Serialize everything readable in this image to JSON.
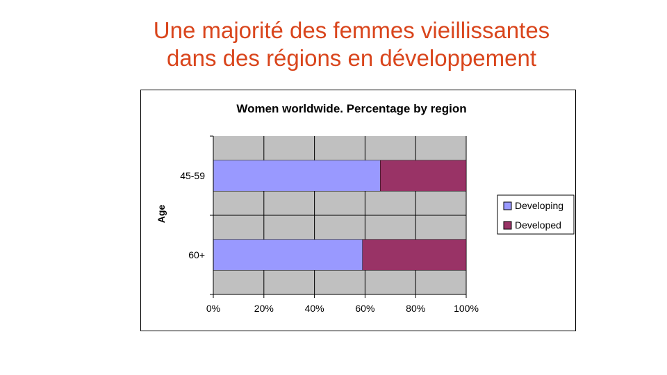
{
  "slide": {
    "title_line1": "Une majorité des femmes vieillissantes",
    "title_line2": "dans des régions en développement"
  },
  "chart_data": {
    "type": "bar",
    "orientation": "horizontal",
    "stacked": "percent",
    "title": "Women worldwide. Percentage by region",
    "ylabel": "Age",
    "xlabel": "",
    "categories": [
      "45-59",
      "60+"
    ],
    "series": [
      {
        "name": "Developing",
        "values": [
          66,
          59
        ],
        "color": "#9999ff"
      },
      {
        "name": "Developed",
        "values": [
          34,
          41
        ],
        "color": "#993366"
      }
    ],
    "x_ticks": [
      "0%",
      "20%",
      "40%",
      "60%",
      "80%",
      "100%"
    ],
    "xlim": [
      0,
      100
    ],
    "grid": true,
    "plot_background": "#c0c0c0",
    "legend_position": "right"
  }
}
